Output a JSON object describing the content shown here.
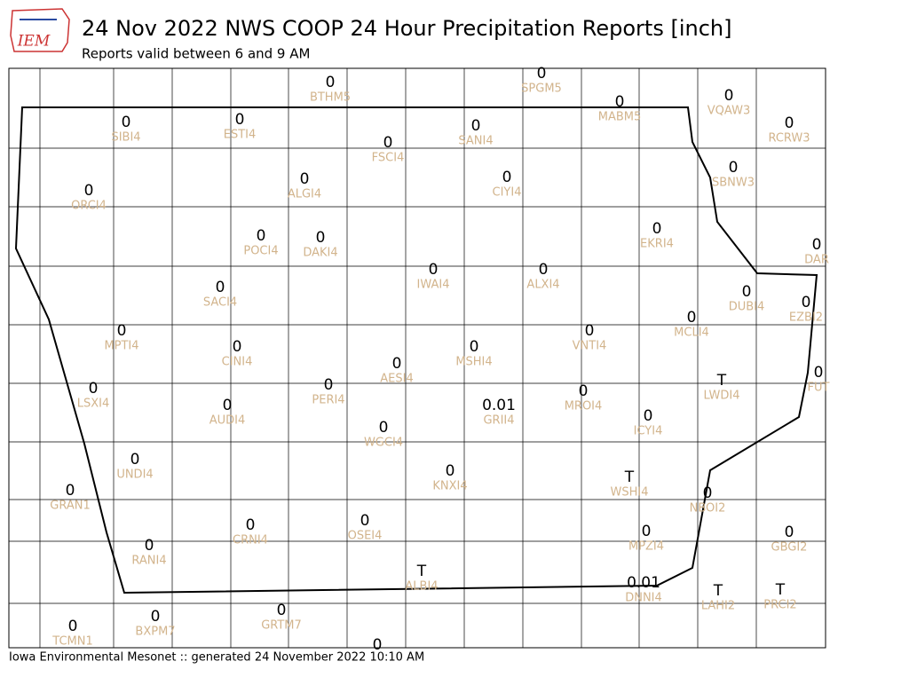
{
  "header": {
    "logo": "IEM",
    "title": "24 Nov 2022 NWS COOP 24 Hour Precipitation Reports [inch]",
    "subtitle": "Reports valid between 6 and 9 AM"
  },
  "footer": "Iowa Environmental Mesonet :: generated 24 November 2022 10:10 AM",
  "stations": [
    {
      "id": "BTHM5",
      "value": "0"
    },
    {
      "id": "SPGM5",
      "value": "0"
    },
    {
      "id": "MABM5",
      "value": "0"
    },
    {
      "id": "VQAW3",
      "value": "0"
    },
    {
      "id": "RCRW3",
      "value": "0"
    },
    {
      "id": "SIBI4",
      "value": "0"
    },
    {
      "id": "ESTI4",
      "value": "0"
    },
    {
      "id": "SANI4",
      "value": "0"
    },
    {
      "id": "FSCI4",
      "value": "0"
    },
    {
      "id": "SBNW3",
      "value": "0"
    },
    {
      "id": "CIYI4",
      "value": "0"
    },
    {
      "id": "ALGI4",
      "value": "0"
    },
    {
      "id": "ORCI4",
      "value": "0"
    },
    {
      "id": "EKRI4",
      "value": "0"
    },
    {
      "id": "POCI4",
      "value": "0"
    },
    {
      "id": "DAKI4",
      "value": "0"
    },
    {
      "id": "DAR",
      "value": "0"
    },
    {
      "id": "IWAI4",
      "value": "0"
    },
    {
      "id": "ALXI4",
      "value": "0"
    },
    {
      "id": "SACI4",
      "value": "0"
    },
    {
      "id": "DUBI4",
      "value": "0"
    },
    {
      "id": "EZBI2",
      "value": "0"
    },
    {
      "id": "MCLI4",
      "value": "0"
    },
    {
      "id": "MPTI4",
      "value": "0"
    },
    {
      "id": "VNTI4",
      "value": "0"
    },
    {
      "id": "CINI4",
      "value": "0"
    },
    {
      "id": "MSHI4",
      "value": "0"
    },
    {
      "id": "AESI4",
      "value": "0"
    },
    {
      "id": "FUT",
      "value": "0"
    },
    {
      "id": "LWDI4",
      "value": "T"
    },
    {
      "id": "PERI4",
      "value": "0"
    },
    {
      "id": "LSXI4",
      "value": "0"
    },
    {
      "id": "GRII4",
      "value": "0.01"
    },
    {
      "id": "MROI4",
      "value": "0"
    },
    {
      "id": "AUDI4",
      "value": "0"
    },
    {
      "id": "ICYI4",
      "value": "0"
    },
    {
      "id": "WGCI4",
      "value": "0"
    },
    {
      "id": "UNDI4",
      "value": "0"
    },
    {
      "id": "KNXI4",
      "value": "0"
    },
    {
      "id": "WSHI4",
      "value": "T"
    },
    {
      "id": "GRAN1",
      "value": "0"
    },
    {
      "id": "NBOI2",
      "value": "0"
    },
    {
      "id": "OSEI4",
      "value": "0"
    },
    {
      "id": "CRNI4",
      "value": "0"
    },
    {
      "id": "MPZI4",
      "value": "0"
    },
    {
      "id": "GBGI2",
      "value": "0"
    },
    {
      "id": "RANI4",
      "value": "0"
    },
    {
      "id": "ALBI4",
      "value": "T"
    },
    {
      "id": "DNNI4",
      "value": "0.01"
    },
    {
      "id": "LAHI2",
      "value": "T"
    },
    {
      "id": "PRCI2",
      "value": "T"
    },
    {
      "id": "BXPM7",
      "value": "0"
    },
    {
      "id": "GRTM7",
      "value": "0"
    },
    {
      "id": "TCMN1",
      "value": "0"
    },
    {
      "value": "0"
    }
  ]
}
